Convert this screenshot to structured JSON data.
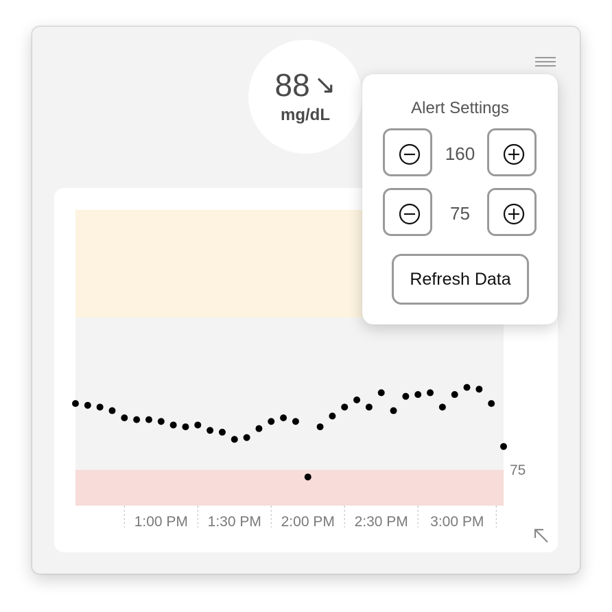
{
  "reading": {
    "value": "88",
    "trend_arrow": "↘",
    "unit": "mg/dL"
  },
  "alert_settings": {
    "title": "Alert Settings",
    "high_threshold": "160",
    "low_threshold": "75",
    "refresh_label": "Refresh Data"
  },
  "icons": {
    "menu": "hamburger-menu-icon",
    "minus": "minus-circle-icon",
    "plus": "plus-circle-icon",
    "resize": "collapse-arrow-icon"
  },
  "colors": {
    "high_band": "#fdf3e0",
    "normal_band": "#f3f3f3",
    "low_band": "#f7dcd9",
    "points": "#000000"
  },
  "chart_data": {
    "type": "scatter",
    "x_unit": "minutes_after_12:38 PM",
    "x_range_minutes": [
      0,
      145
    ],
    "ylim": [
      55,
      220
    ],
    "high_threshold": 160,
    "low_threshold": 75,
    "y_tick_labels": [
      "75"
    ],
    "x_tick_labels": [
      "1:00 PM",
      "1:30 PM",
      "2:00 PM",
      "2:30 PM",
      "3:00 PM"
    ],
    "x_ticks_minutes": [
      22,
      52,
      82,
      112,
      142
    ],
    "points": [
      {
        "t": 0,
        "y": 112
      },
      {
        "t": 5,
        "y": 111
      },
      {
        "t": 10,
        "y": 110
      },
      {
        "t": 15,
        "y": 108
      },
      {
        "t": 20,
        "y": 104
      },
      {
        "t": 25,
        "y": 103
      },
      {
        "t": 30,
        "y": 103
      },
      {
        "t": 35,
        "y": 102
      },
      {
        "t": 40,
        "y": 100
      },
      {
        "t": 45,
        "y": 99
      },
      {
        "t": 50,
        "y": 100
      },
      {
        "t": 55,
        "y": 97
      },
      {
        "t": 60,
        "y": 96
      },
      {
        "t": 65,
        "y": 92
      },
      {
        "t": 70,
        "y": 93
      },
      {
        "t": 75,
        "y": 98
      },
      {
        "t": 80,
        "y": 102
      },
      {
        "t": 85,
        "y": 104
      },
      {
        "t": 90,
        "y": 102
      },
      {
        "t": 95,
        "y": 71
      },
      {
        "t": 100,
        "y": 99
      },
      {
        "t": 105,
        "y": 105
      },
      {
        "t": 110,
        "y": 110
      },
      {
        "t": 115,
        "y": 114
      },
      {
        "t": 120,
        "y": 110
      },
      {
        "t": 125,
        "y": 118
      },
      {
        "t": 130,
        "y": 108
      },
      {
        "t": 135,
        "y": 116
      },
      {
        "t": 140,
        "y": 117
      },
      {
        "t": 145,
        "y": 118
      },
      {
        "t": 150,
        "y": 110
      },
      {
        "t": 155,
        "y": 117
      },
      {
        "t": 160,
        "y": 121
      },
      {
        "t": 165,
        "y": 120
      },
      {
        "t": 170,
        "y": 112
      },
      {
        "t": 175,
        "y": 88
      }
    ]
  }
}
